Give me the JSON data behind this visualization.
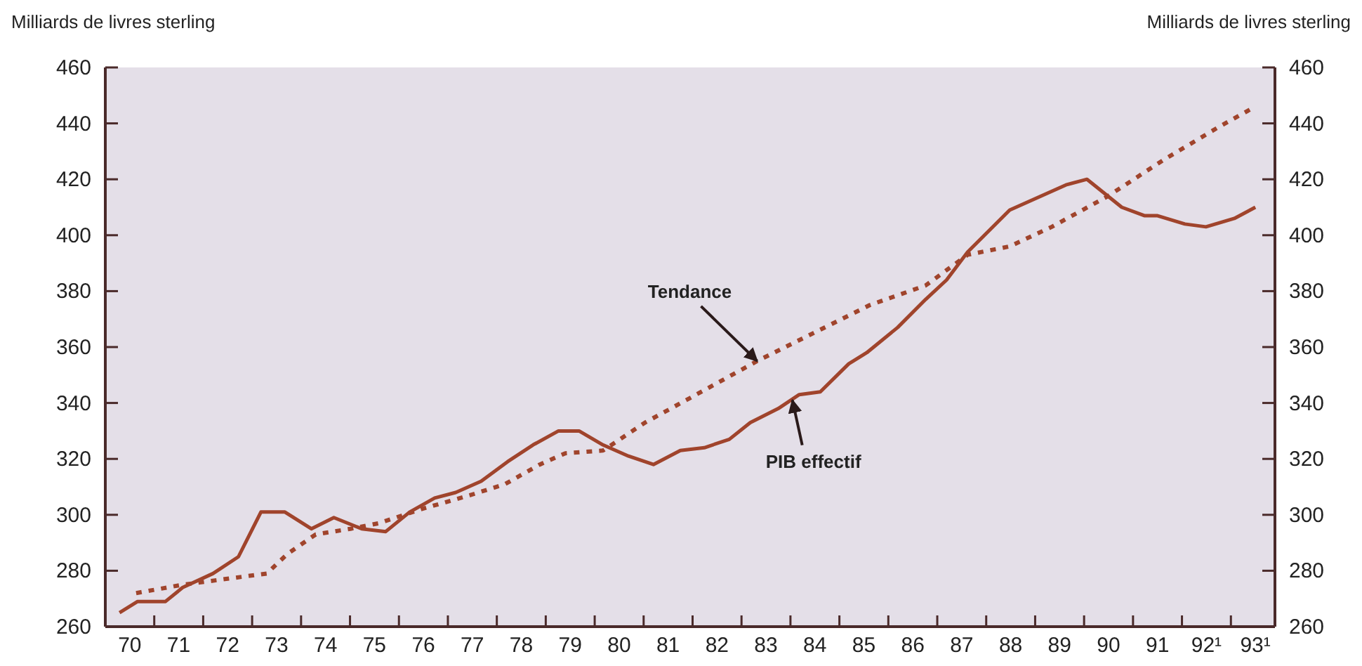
{
  "chart_data": {
    "type": "line",
    "ylabel": "Milliards de livres sterling",
    "y2label": "Milliards de livres sterling",
    "xlim": [
      69.5,
      93.4
    ],
    "xticks": [
      70,
      {
        "value": 70.5,
        "label": null
      },
      71,
      {
        "value": 71.5,
        "label": null
      },
      72,
      {
        "value": 72.5,
        "label": null
      },
      73,
      {
        "value": 73.5,
        "label": null
      },
      74,
      {
        "value": 74.5,
        "label": null
      },
      75,
      {
        "value": 75.5,
        "label": null
      },
      76,
      {
        "value": 76.5,
        "label": null
      },
      77,
      {
        "value": 77.5,
        "label": null
      },
      78,
      {
        "value": 78.5,
        "label": null
      },
      79,
      {
        "value": 79.5,
        "label": null
      },
      80,
      {
        "value": 80.5,
        "label": null
      },
      81,
      {
        "value": 81.5,
        "label": null
      },
      82,
      {
        "value": 82.5,
        "label": null
      },
      83,
      {
        "value": 83.5,
        "label": null
      },
      84,
      {
        "value": 84.5,
        "label": null
      },
      85,
      {
        "value": 85.5,
        "label": null
      },
      86,
      {
        "value": 86.5,
        "label": null
      },
      87,
      {
        "value": 87.5,
        "label": null
      },
      88,
      {
        "value": 88.5,
        "label": null
      },
      89,
      {
        "value": 89.5,
        "label": null
      },
      90,
      {
        "value": 90.5,
        "label": null
      },
      91,
      {
        "value": 91.5,
        "label": null
      },
      {
        "value": 92,
        "label": "92¹"
      },
      {
        "value": 92.5,
        "label": null
      },
      {
        "value": 93,
        "label": "93¹"
      }
    ],
    "ylim": [
      260,
      460
    ],
    "yticks": [
      260,
      280,
      300,
      320,
      340,
      360,
      380,
      400,
      420,
      440,
      460
    ],
    "y2lim": [
      260,
      460
    ],
    "y2ticks": [
      260,
      280,
      300,
      320,
      340,
      360,
      380,
      400,
      420,
      440,
      460
    ],
    "grid": false,
    "series": [
      {
        "color": "#a0442c",
        "line_style": "solid",
        "x": [
          69.79,
          70.16,
          70.73,
          71.08,
          71.7,
          72.22,
          72.68,
          73.17,
          73.71,
          74.17,
          74.74,
          75.23,
          75.72,
          76.23,
          76.66,
          77.18,
          77.72,
          78.24,
          78.76,
          79.18,
          79.67,
          80.19,
          80.7,
          81.25,
          81.74,
          82.25,
          82.68,
          83.25,
          83.68,
          84.11,
          84.69,
          85.06,
          85.69,
          86.26,
          86.69,
          87.12,
          87.98,
          89.13,
          89.56,
          90.27,
          90.73,
          90.99,
          91.56,
          91.99,
          92.57,
          93.0
        ],
        "values": [
          265,
          269,
          269,
          274,
          279,
          285,
          301,
          301,
          295,
          299,
          295,
          294,
          301,
          306,
          308,
          312,
          319,
          325,
          330,
          330,
          325,
          321,
          318,
          323,
          324,
          327,
          333,
          338,
          343,
          344,
          354,
          358,
          367,
          377,
          384,
          394,
          409,
          418,
          420,
          410,
          407,
          407,
          404,
          403,
          406,
          410
        ]
      },
      {
        "color": "#a0442c",
        "line_style": "dotted",
        "x": [
          70.13,
          71.08,
          71.94,
          72.8,
          73.22,
          73.8,
          74.51,
          75.09,
          75.95,
          76.95,
          77.67,
          78.38,
          78.9,
          79.67,
          80.53,
          81.68,
          82.82,
          83.97,
          85.12,
          86.26,
          87.12,
          87.98,
          88.84,
          89.99,
          91.13,
          92.28,
          93.0
        ],
        "values": [
          272,
          275,
          277,
          279,
          286,
          293,
          295,
          297,
          302,
          307,
          311,
          318,
          322,
          323,
          333,
          344,
          355,
          365,
          375,
          382,
          393,
          396,
          403,
          414,
          427,
          439,
          446
        ]
      }
    ],
    "annotations": [
      {
        "text": "Tendance",
        "x": 82.82,
        "y": 355
      },
      {
        "text": "PIB effectif",
        "x": 83.54,
        "y": 341
      }
    ]
  }
}
